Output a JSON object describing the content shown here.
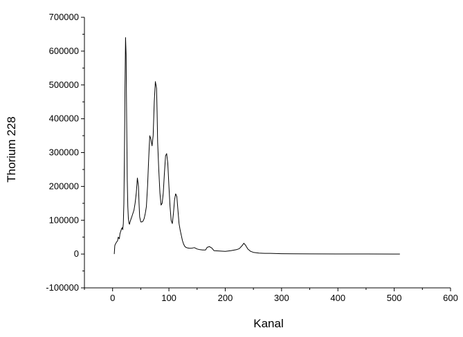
{
  "chart_data": {
    "type": "line",
    "title": "",
    "xlabel": "Kanal",
    "ylabel": "Thorium 228",
    "xlim": [
      -50,
      600
    ],
    "ylim": [
      -100000,
      700000
    ],
    "x_ticks": [
      0,
      100,
      200,
      300,
      400,
      500,
      600
    ],
    "y_ticks": [
      -100000,
      0,
      100000,
      200000,
      300000,
      400000,
      500000,
      600000,
      700000
    ],
    "x_tick_labels": [
      "0",
      "100",
      "200",
      "300",
      "400",
      "500",
      "600"
    ],
    "y_tick_labels": [
      "-100000",
      "0",
      "100000",
      "200000",
      "300000",
      "400000",
      "500000",
      "600000",
      "700000"
    ],
    "grid": false,
    "line_color": "#000000",
    "series": [
      {
        "x": [
          3,
          4,
          5,
          7,
          9,
          10,
          12,
          13,
          14,
          15,
          16,
          17,
          18,
          19,
          20,
          21,
          22,
          23,
          24,
          25,
          26,
          27,
          28,
          29,
          30,
          31,
          32,
          33,
          34,
          35,
          36,
          38,
          40,
          42,
          44,
          46,
          47,
          48,
          50,
          52,
          54,
          56,
          58,
          60,
          62,
          64,
          66,
          68,
          70,
          72,
          74,
          76,
          78,
          79,
          80,
          82,
          84,
          86,
          88,
          90,
          92,
          94,
          96,
          98,
          100,
          102,
          104,
          106,
          108,
          110,
          112,
          114,
          116,
          118,
          120,
          122,
          124,
          126,
          128,
          130,
          133,
          136,
          140,
          145,
          150,
          155,
          160,
          165,
          168,
          172,
          176,
          180,
          190,
          200,
          210,
          220,
          225,
          230,
          233,
          236,
          240,
          245,
          250,
          260,
          270,
          280,
          290,
          300,
          320,
          350,
          400,
          450,
          500,
          510
        ],
        "y": [
          0,
          25000,
          30000,
          35000,
          40000,
          50000,
          45000,
          60000,
          65000,
          70000,
          75000,
          78000,
          72000,
          90000,
          150000,
          290000,
          500000,
          640000,
          590000,
          400000,
          220000,
          140000,
          105000,
          92000,
          88000,
          95000,
          100000,
          105000,
          110000,
          115000,
          120000,
          130000,
          150000,
          180000,
          225000,
          200000,
          150000,
          110000,
          95000,
          95000,
          97000,
          105000,
          120000,
          140000,
          200000,
          280000,
          350000,
          340000,
          320000,
          350000,
          450000,
          510000,
          490000,
          420000,
          330000,
          250000,
          180000,
          145000,
          150000,
          180000,
          240000,
          290000,
          297000,
          270000,
          200000,
          140000,
          100000,
          90000,
          120000,
          160000,
          178000,
          170000,
          130000,
          90000,
          70000,
          55000,
          40000,
          30000,
          23000,
          20000,
          18000,
          17000,
          17000,
          19000,
          15000,
          13000,
          12000,
          12000,
          20000,
          22000,
          18000,
          10000,
          9000,
          8000,
          10000,
          13000,
          16000,
          25000,
          32000,
          26000,
          15000,
          8000,
          5000,
          3000,
          2000,
          2000,
          1500,
          1000,
          800,
          500,
          300,
          200,
          100,
          0
        ]
      }
    ]
  }
}
